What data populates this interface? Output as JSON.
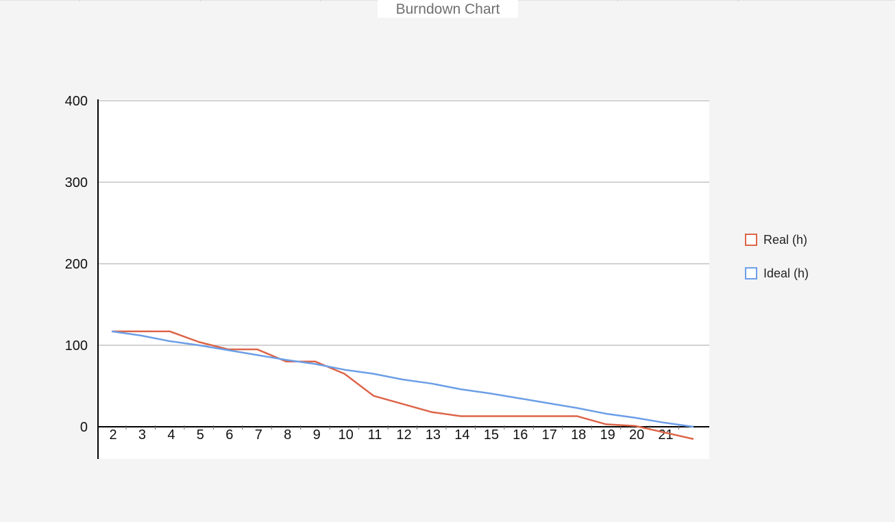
{
  "chart_data": {
    "type": "line",
    "title": "Burndown Chart",
    "xlabel": "",
    "ylabel": "",
    "x": [
      2,
      3,
      4,
      5,
      6,
      7,
      8,
      9,
      10,
      11,
      12,
      13,
      14,
      15,
      16,
      17,
      18,
      19,
      20,
      21,
      22
    ],
    "x_tick_labels": [
      "2",
      "3",
      "4",
      "5",
      "6",
      "7",
      "8",
      "9",
      "10",
      "11",
      "12",
      "13",
      "14",
      "15",
      "16",
      "17",
      "18",
      "19",
      "20",
      "21"
    ],
    "y_ticks": [
      0,
      100,
      200,
      300,
      400
    ],
    "ylim": [
      -40,
      400
    ],
    "grid": true,
    "legend_position": "right",
    "series": [
      {
        "name": "Real (h)",
        "color": "#dc6448",
        "values": [
          117,
          117,
          117,
          104,
          95,
          95,
          80,
          80,
          65,
          38,
          28,
          18,
          13,
          13,
          13,
          13,
          13,
          3,
          1,
          -7,
          -15
        ]
      },
      {
        "name": "Ideal (h)",
        "color": "#6b9ee8",
        "values": [
          117,
          112,
          105,
          100,
          94,
          88,
          82,
          77,
          70,
          65,
          58,
          53,
          46,
          41,
          35,
          29,
          23,
          16,
          11,
          5,
          0
        ]
      }
    ]
  }
}
